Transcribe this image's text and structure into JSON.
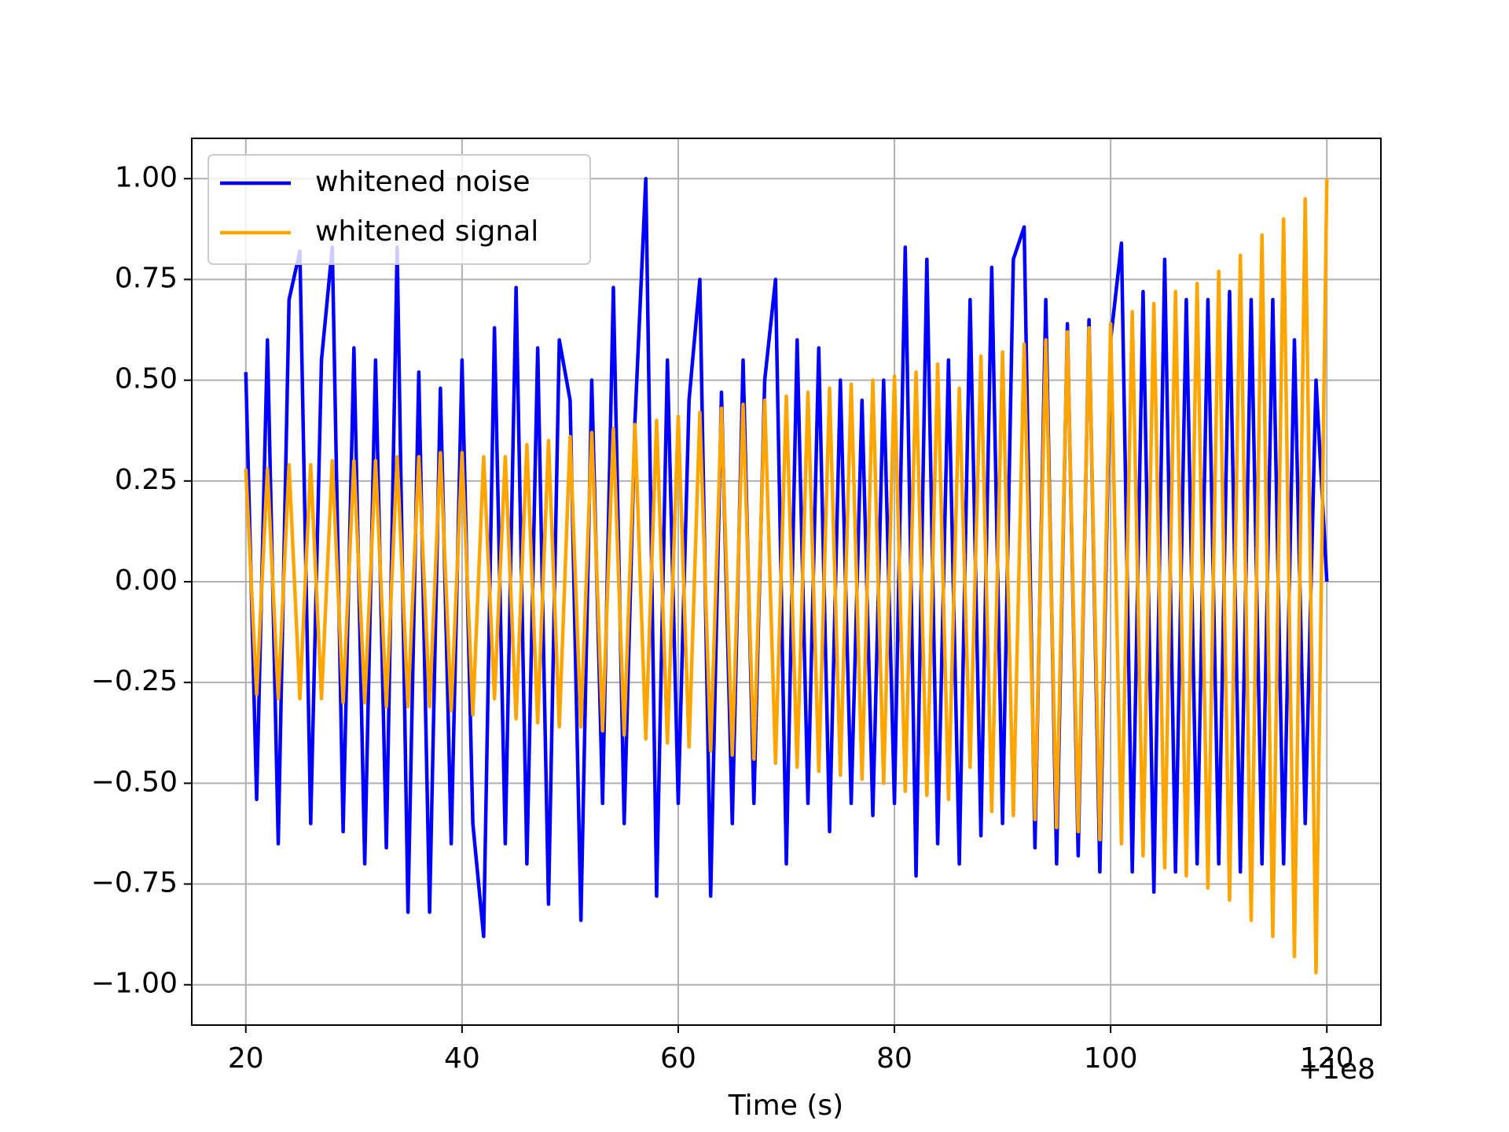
{
  "chart_data": {
    "type": "line",
    "xlabel": "Time (s)",
    "x_offset_label": "+1e8",
    "x": [
      20,
      21,
      22,
      23,
      24,
      25,
      26,
      27,
      28,
      29,
      30,
      31,
      32,
      33,
      34,
      35,
      36,
      37,
      38,
      39,
      40,
      41,
      42,
      43,
      44,
      45,
      46,
      47,
      48,
      49,
      50,
      51,
      52,
      53,
      54,
      55,
      56,
      57,
      58,
      59,
      60,
      61,
      62,
      63,
      64,
      65,
      66,
      67,
      68,
      69,
      70,
      71,
      72,
      73,
      74,
      75,
      76,
      77,
      78,
      79,
      80,
      81,
      82,
      83,
      84,
      85,
      86,
      87,
      88,
      89,
      90,
      91,
      92,
      93,
      94,
      95,
      96,
      97,
      98,
      99,
      100,
      101,
      102,
      103,
      104,
      105,
      106,
      107,
      108,
      109,
      110,
      111,
      112,
      113,
      114,
      115,
      116,
      117,
      118,
      119,
      120
    ],
    "series": [
      {
        "name": "whitened noise",
        "color": "#0000ff",
        "values": [
          0.52,
          -0.54,
          0.6,
          -0.65,
          0.7,
          0.82,
          -0.6,
          0.55,
          0.83,
          -0.62,
          0.58,
          -0.7,
          0.55,
          -0.66,
          0.83,
          -0.82,
          0.52,
          -0.82,
          0.48,
          -0.65,
          0.55,
          -0.6,
          -0.88,
          0.63,
          -0.65,
          0.73,
          -0.7,
          0.58,
          -0.8,
          0.6,
          0.45,
          -0.84,
          0.5,
          -0.55,
          0.73,
          -0.6,
          0.4,
          1.0,
          -0.78,
          0.55,
          -0.55,
          0.45,
          0.75,
          -0.78,
          0.47,
          -0.6,
          0.55,
          -0.55,
          0.5,
          0.75,
          -0.7,
          0.6,
          -0.55,
          0.58,
          -0.62,
          0.5,
          -0.55,
          0.45,
          -0.58,
          0.5,
          -0.55,
          0.83,
          -0.73,
          0.8,
          -0.65,
          0.55,
          -0.7,
          0.7,
          -0.63,
          0.78,
          -0.6,
          0.8,
          0.88,
          -0.66,
          0.7,
          -0.7,
          0.64,
          -0.68,
          0.65,
          -0.72,
          0.6,
          0.84,
          -0.72,
          0.72,
          -0.77,
          0.8,
          -0.72,
          0.7,
          -0.7,
          0.7,
          -0.7,
          0.72,
          -0.72,
          0.7,
          -0.7,
          0.7,
          -0.7,
          0.6,
          -0.6,
          0.5,
          0
        ]
      },
      {
        "name": "whitened signal",
        "color": "#ffa500",
        "values": [
          0.28,
          -0.28,
          0.28,
          -0.29,
          0.29,
          -0.29,
          0.29,
          -0.29,
          0.3,
          -0.3,
          0.3,
          -0.3,
          0.3,
          -0.31,
          0.31,
          -0.31,
          0.31,
          -0.31,
          0.32,
          -0.32,
          0.32,
          -0.33,
          0.31,
          -0.29,
          0.31,
          -0.34,
          0.34,
          -0.35,
          0.35,
          -0.36,
          0.36,
          -0.36,
          0.37,
          -0.37,
          0.38,
          -0.38,
          0.39,
          -0.39,
          0.4,
          -0.4,
          0.41,
          -0.41,
          0.42,
          -0.42,
          0.43,
          -0.43,
          0.44,
          -0.44,
          0.45,
          -0.45,
          0.46,
          -0.46,
          0.47,
          -0.47,
          0.48,
          -0.48,
          0.49,
          -0.49,
          0.5,
          -0.5,
          0.51,
          -0.52,
          0.52,
          -0.53,
          0.54,
          -0.54,
          0.48,
          -0.46,
          0.56,
          -0.57,
          0.57,
          -0.58,
          0.59,
          -0.59,
          0.6,
          -0.61,
          0.62,
          -0.62,
          0.63,
          -0.64,
          0.64,
          -0.65,
          0.67,
          -0.68,
          0.69,
          -0.71,
          0.72,
          -0.73,
          0.74,
          -0.76,
          0.77,
          -0.79,
          0.81,
          -0.84,
          0.86,
          -0.88,
          0.9,
          -0.93,
          0.95,
          -0.97,
          1.0
        ]
      }
    ],
    "xlim": [
      15,
      125
    ],
    "ylim": [
      -1.1,
      1.1
    ],
    "xticks": [
      20,
      40,
      60,
      80,
      100,
      120
    ],
    "yticks": [
      {
        "value": -1,
        "label": "−1.00"
      },
      {
        "value": -0.75,
        "label": "−0.75"
      },
      {
        "value": -0.5,
        "label": "−0.50"
      },
      {
        "value": -0.25,
        "label": "−0.25"
      },
      {
        "value": 0,
        "label": "0.00"
      },
      {
        "value": 0.25,
        "label": "0.25"
      },
      {
        "value": 0.5,
        "label": "0.50"
      },
      {
        "value": 0.75,
        "label": "0.75"
      },
      {
        "value": 1,
        "label": "1.00"
      }
    ],
    "grid": true,
    "legend": "upper left"
  }
}
